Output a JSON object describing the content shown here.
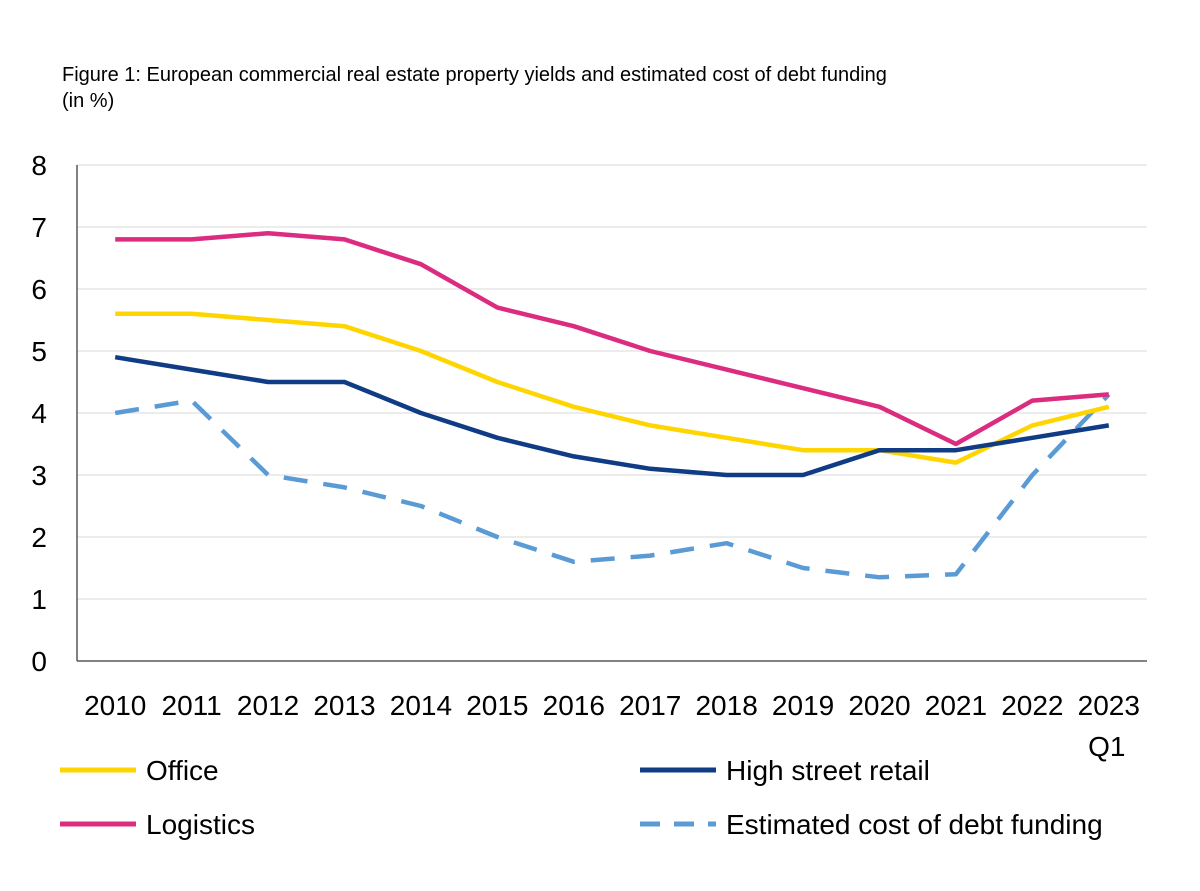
{
  "figure": {
    "title_line1": "Figure 1: European commercial real estate property yields and estimated cost of debt funding",
    "title_line2": "(in %)"
  },
  "chart_data": {
    "type": "line",
    "title": "Figure 1: European commercial real estate property yields and estimated cost of debt funding (in %)",
    "xlabel": "",
    "ylabel": "",
    "categories": [
      "2010",
      "2011",
      "2012",
      "2013",
      "2014",
      "2015",
      "2016",
      "2017",
      "2018",
      "2019",
      "2020",
      "2021",
      "2022",
      "2023"
    ],
    "last_category_sublabel": "Q1",
    "ylim": [
      0,
      8
    ],
    "yticks": [
      0,
      1,
      2,
      3,
      4,
      5,
      6,
      7,
      8
    ],
    "grid": true,
    "legend_position": "bottom",
    "series": [
      {
        "name": "Office",
        "color": "#FFD500",
        "style": "solid",
        "values": [
          5.6,
          5.6,
          5.5,
          5.4,
          5.0,
          4.5,
          4.1,
          3.8,
          3.6,
          3.4,
          3.4,
          3.2,
          3.8,
          4.1
        ]
      },
      {
        "name": "High street retail",
        "color": "#0F3C84",
        "style": "solid",
        "values": [
          4.9,
          4.7,
          4.5,
          4.5,
          4.0,
          3.6,
          3.3,
          3.1,
          3.0,
          3.0,
          3.4,
          3.4,
          3.6,
          3.8
        ]
      },
      {
        "name": "Logistics",
        "color": "#DB2C7F",
        "style": "solid",
        "values": [
          6.8,
          6.8,
          6.9,
          6.8,
          6.4,
          5.7,
          5.4,
          5.0,
          4.7,
          4.4,
          4.1,
          3.5,
          4.2,
          4.3
        ]
      },
      {
        "name": "Estimated cost of debt funding",
        "color": "#5B9BD5",
        "style": "dashed",
        "values": [
          4.0,
          4.2,
          3.0,
          2.8,
          2.5,
          2.0,
          1.6,
          1.7,
          1.9,
          1.5,
          1.35,
          1.4,
          3.0,
          4.3
        ]
      }
    ]
  }
}
